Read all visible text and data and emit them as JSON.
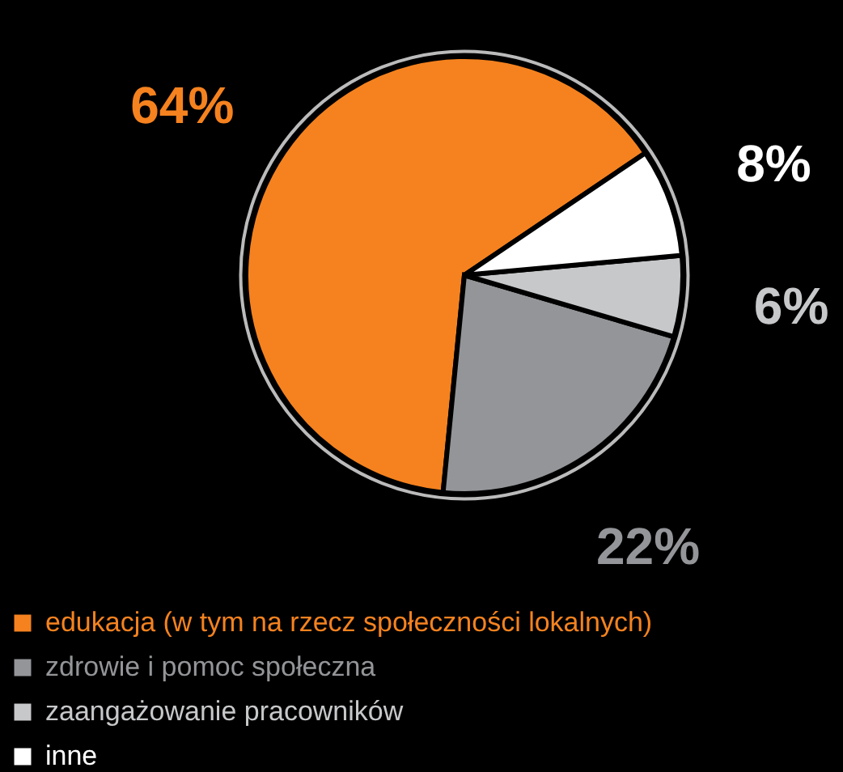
{
  "chart_data": {
    "type": "pie",
    "categories": [
      "edukacja (w tym na rzecz społeczności lokalnych)",
      "zdrowie i pomoc społeczna",
      "zaangażowanie pracowników",
      "inne"
    ],
    "values": [
      64,
      22,
      6,
      8
    ],
    "colors": [
      "#f5821f",
      "#939598",
      "#c7c8ca",
      "#ffffff"
    ],
    "value_labels": [
      "64%",
      "22%",
      "6%",
      "8%"
    ],
    "legend": "bottom"
  }
}
